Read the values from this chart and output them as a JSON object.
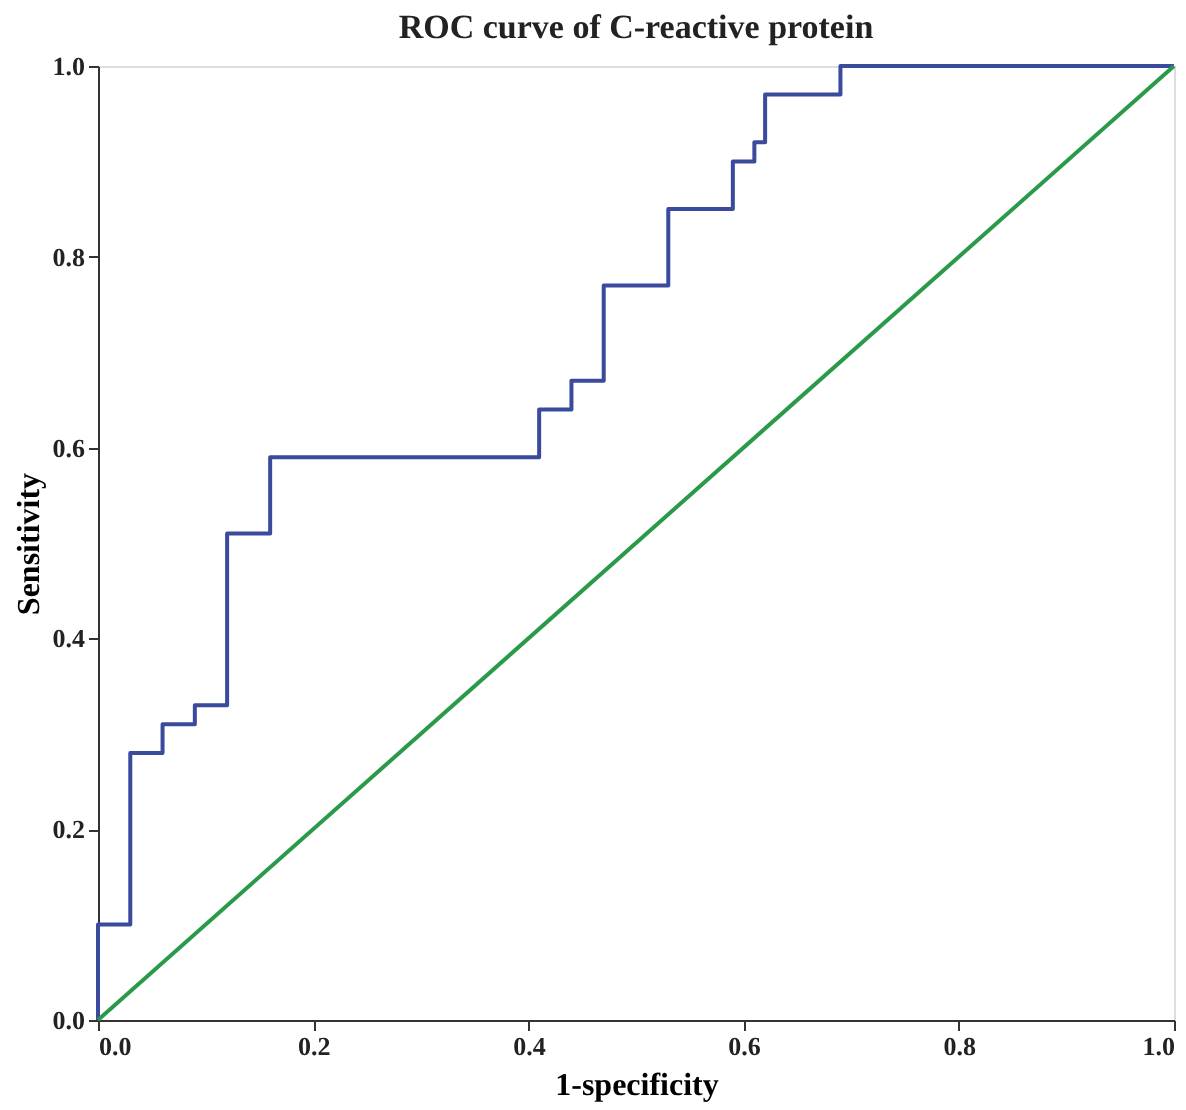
{
  "chart_data": {
    "type": "step",
    "title": "ROC curve of C-reactive protein",
    "xlabel": "1-specificity",
    "ylabel": "Sensitivity",
    "xlim": [
      0,
      1
    ],
    "ylim": [
      0,
      1
    ],
    "xticks": [
      {
        "value": 0,
        "label": "0.0"
      },
      {
        "value": 0.2,
        "label": "0.2"
      },
      {
        "value": 0.4,
        "label": "0.4"
      },
      {
        "value": 0.6,
        "label": "0.6"
      },
      {
        "value": 0.8,
        "label": "0.8"
      },
      {
        "value": 1,
        "label": "1.0"
      }
    ],
    "yticks": [
      {
        "value": 0,
        "label": "0.0"
      },
      {
        "value": 0.2,
        "label": "0.2"
      },
      {
        "value": 0.4,
        "label": "0.4"
      },
      {
        "value": 0.6,
        "label": "0.6"
      },
      {
        "value": 0.8,
        "label": "0.8"
      },
      {
        "value": 1,
        "label": "1.0"
      }
    ],
    "grid": false,
    "series": [
      {
        "color": "#3a4a9c",
        "x": [
          0,
          0,
          0.03,
          0.06,
          0.09,
          0.12,
          0.16,
          0.41,
          0.44,
          0.47,
          0.53,
          0.59,
          0.61,
          0.62,
          0.69,
          1.0
        ],
        "values": [
          0,
          0.1,
          0.28,
          0.31,
          0.33,
          0.51,
          0.59,
          0.64,
          0.67,
          0.77,
          0.85,
          0.9,
          0.92,
          0.97,
          1.0,
          1.0
        ]
      },
      {
        "type": "line",
        "color": "#2a9a4a",
        "x": [
          0,
          1
        ],
        "values": [
          0,
          1
        ]
      }
    ]
  }
}
